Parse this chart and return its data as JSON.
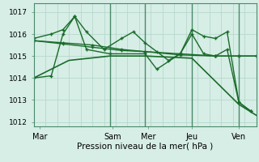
{
  "background_color": "#d6eee6",
  "grid_color": "#b8d8cc",
  "line_color": "#1a6b2a",
  "vline_color": "#4a8a6a",
  "xlabel": "Pression niveau de la mer( hPa )",
  "ylim": [
    1011.8,
    1017.4
  ],
  "xlim": [
    0,
    38
  ],
  "xtick_positions": [
    1,
    13.5,
    19.5,
    27,
    35
  ],
  "xtick_labels": [
    "Mar",
    "Sam",
    "Mer",
    "Jeu",
    "Ven"
  ],
  "ytick_positions": [
    1012,
    1013,
    1014,
    1015,
    1016,
    1017
  ],
  "vlines": [
    13,
    19,
    27,
    35
  ],
  "series": [
    {
      "x": [
        0,
        3,
        5,
        7,
        9,
        12,
        15,
        17,
        19,
        21,
        23,
        25,
        27,
        29,
        31,
        33,
        35,
        37
      ],
      "y": [
        1015.8,
        1016.0,
        1016.2,
        1016.8,
        1016.1,
        1015.3,
        1015.8,
        1016.1,
        1015.6,
        1015.2,
        1014.8,
        1015.1,
        1016.2,
        1015.9,
        1015.8,
        1016.1,
        1012.9,
        1012.5
      ],
      "marker": "+",
      "lw": 1.0
    },
    {
      "x": [
        0,
        3,
        5,
        7,
        9,
        13,
        19,
        21,
        25,
        27,
        29,
        31,
        33,
        35,
        37
      ],
      "y": [
        1014.0,
        1014.1,
        1016.0,
        1016.8,
        1015.3,
        1015.1,
        1015.1,
        1014.4,
        1015.1,
        1016.0,
        1015.1,
        1015.0,
        1015.3,
        1012.9,
        1012.5
      ],
      "marker": "+",
      "lw": 1.0
    },
    {
      "x": [
        0,
        5,
        10,
        15,
        19,
        25,
        31,
        35,
        38
      ],
      "y": [
        1015.7,
        1015.6,
        1015.5,
        1015.3,
        1015.2,
        1015.1,
        1015.0,
        1015.0,
        1015.0
      ],
      "marker": "+",
      "lw": 1.0
    },
    {
      "x": [
        0,
        5,
        10,
        15,
        19,
        25,
        31,
        35,
        38
      ],
      "y": [
        1015.7,
        1015.55,
        1015.4,
        1015.25,
        1015.2,
        1015.05,
        1015.0,
        1015.0,
        1015.0
      ],
      "marker": "+",
      "lw": 1.0
    },
    {
      "x": [
        0,
        6,
        13,
        19,
        27,
        35,
        38
      ],
      "y": [
        1014.0,
        1014.8,
        1015.0,
        1015.0,
        1014.9,
        1012.8,
        1012.3
      ],
      "marker": null,
      "lw": 1.2
    }
  ]
}
